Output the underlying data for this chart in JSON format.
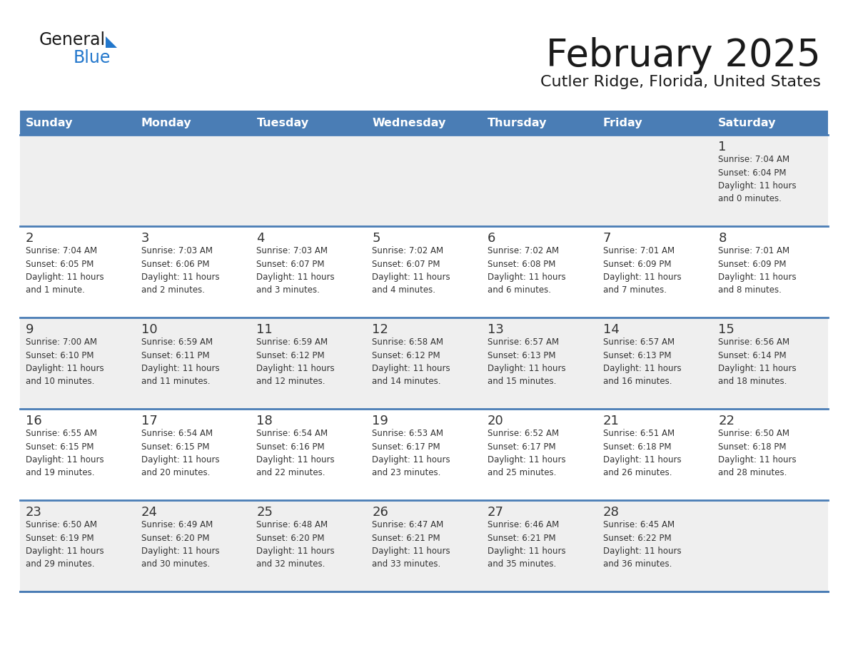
{
  "title": "February 2025",
  "subtitle": "Cutler Ridge, Florida, United States",
  "logo_general_color": "#1a1a1a",
  "logo_blue_color": "#2277CC",
  "logo_triangle_color": "#2277CC",
  "header_bg_color": "#4a7db5",
  "header_text_color": "#FFFFFF",
  "row_bg_odd": "#EFEFEF",
  "row_bg_even": "#FFFFFF",
  "grid_line_color": "#4a7db5",
  "date_text_color": "#333333",
  "cell_text_color": "#333333",
  "day_headers": [
    "Sunday",
    "Monday",
    "Tuesday",
    "Wednesday",
    "Thursday",
    "Friday",
    "Saturday"
  ],
  "calendar_data": [
    [
      {
        "day": "",
        "info": ""
      },
      {
        "day": "",
        "info": ""
      },
      {
        "day": "",
        "info": ""
      },
      {
        "day": "",
        "info": ""
      },
      {
        "day": "",
        "info": ""
      },
      {
        "day": "",
        "info": ""
      },
      {
        "day": "1",
        "info": "Sunrise: 7:04 AM\nSunset: 6:04 PM\nDaylight: 11 hours\nand 0 minutes."
      }
    ],
    [
      {
        "day": "2",
        "info": "Sunrise: 7:04 AM\nSunset: 6:05 PM\nDaylight: 11 hours\nand 1 minute."
      },
      {
        "day": "3",
        "info": "Sunrise: 7:03 AM\nSunset: 6:06 PM\nDaylight: 11 hours\nand 2 minutes."
      },
      {
        "day": "4",
        "info": "Sunrise: 7:03 AM\nSunset: 6:07 PM\nDaylight: 11 hours\nand 3 minutes."
      },
      {
        "day": "5",
        "info": "Sunrise: 7:02 AM\nSunset: 6:07 PM\nDaylight: 11 hours\nand 4 minutes."
      },
      {
        "day": "6",
        "info": "Sunrise: 7:02 AM\nSunset: 6:08 PM\nDaylight: 11 hours\nand 6 minutes."
      },
      {
        "day": "7",
        "info": "Sunrise: 7:01 AM\nSunset: 6:09 PM\nDaylight: 11 hours\nand 7 minutes."
      },
      {
        "day": "8",
        "info": "Sunrise: 7:01 AM\nSunset: 6:09 PM\nDaylight: 11 hours\nand 8 minutes."
      }
    ],
    [
      {
        "day": "9",
        "info": "Sunrise: 7:00 AM\nSunset: 6:10 PM\nDaylight: 11 hours\nand 10 minutes."
      },
      {
        "day": "10",
        "info": "Sunrise: 6:59 AM\nSunset: 6:11 PM\nDaylight: 11 hours\nand 11 minutes."
      },
      {
        "day": "11",
        "info": "Sunrise: 6:59 AM\nSunset: 6:12 PM\nDaylight: 11 hours\nand 12 minutes."
      },
      {
        "day": "12",
        "info": "Sunrise: 6:58 AM\nSunset: 6:12 PM\nDaylight: 11 hours\nand 14 minutes."
      },
      {
        "day": "13",
        "info": "Sunrise: 6:57 AM\nSunset: 6:13 PM\nDaylight: 11 hours\nand 15 minutes."
      },
      {
        "day": "14",
        "info": "Sunrise: 6:57 AM\nSunset: 6:13 PM\nDaylight: 11 hours\nand 16 minutes."
      },
      {
        "day": "15",
        "info": "Sunrise: 6:56 AM\nSunset: 6:14 PM\nDaylight: 11 hours\nand 18 minutes."
      }
    ],
    [
      {
        "day": "16",
        "info": "Sunrise: 6:55 AM\nSunset: 6:15 PM\nDaylight: 11 hours\nand 19 minutes."
      },
      {
        "day": "17",
        "info": "Sunrise: 6:54 AM\nSunset: 6:15 PM\nDaylight: 11 hours\nand 20 minutes."
      },
      {
        "day": "18",
        "info": "Sunrise: 6:54 AM\nSunset: 6:16 PM\nDaylight: 11 hours\nand 22 minutes."
      },
      {
        "day": "19",
        "info": "Sunrise: 6:53 AM\nSunset: 6:17 PM\nDaylight: 11 hours\nand 23 minutes."
      },
      {
        "day": "20",
        "info": "Sunrise: 6:52 AM\nSunset: 6:17 PM\nDaylight: 11 hours\nand 25 minutes."
      },
      {
        "day": "21",
        "info": "Sunrise: 6:51 AM\nSunset: 6:18 PM\nDaylight: 11 hours\nand 26 minutes."
      },
      {
        "day": "22",
        "info": "Sunrise: 6:50 AM\nSunset: 6:18 PM\nDaylight: 11 hours\nand 28 minutes."
      }
    ],
    [
      {
        "day": "23",
        "info": "Sunrise: 6:50 AM\nSunset: 6:19 PM\nDaylight: 11 hours\nand 29 minutes."
      },
      {
        "day": "24",
        "info": "Sunrise: 6:49 AM\nSunset: 6:20 PM\nDaylight: 11 hours\nand 30 minutes."
      },
      {
        "day": "25",
        "info": "Sunrise: 6:48 AM\nSunset: 6:20 PM\nDaylight: 11 hours\nand 32 minutes."
      },
      {
        "day": "26",
        "info": "Sunrise: 6:47 AM\nSunset: 6:21 PM\nDaylight: 11 hours\nand 33 minutes."
      },
      {
        "day": "27",
        "info": "Sunrise: 6:46 AM\nSunset: 6:21 PM\nDaylight: 11 hours\nand 35 minutes."
      },
      {
        "day": "28",
        "info": "Sunrise: 6:45 AM\nSunset: 6:22 PM\nDaylight: 11 hours\nand 36 minutes."
      },
      {
        "day": "",
        "info": ""
      }
    ]
  ]
}
